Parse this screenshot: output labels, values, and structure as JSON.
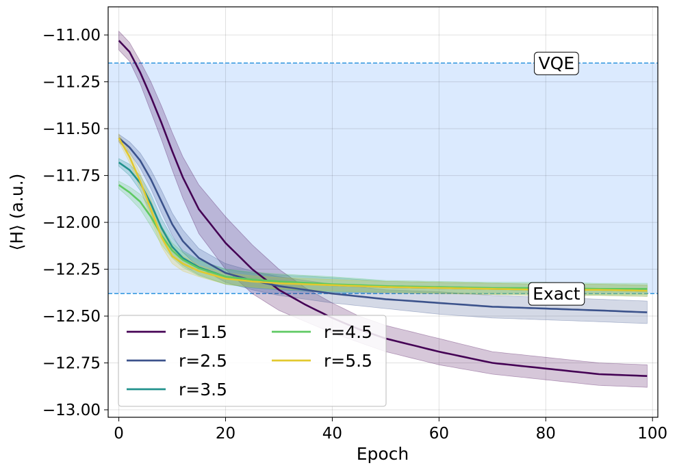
{
  "chart_data": {
    "type": "line",
    "title": "",
    "xlabel": "Epoch",
    "ylabel": "⟨H⟩ (a.u.)",
    "xlim": [
      -2,
      101
    ],
    "ylim": [
      -13.04,
      -10.85
    ],
    "xticks": [
      0,
      20,
      40,
      60,
      80,
      100
    ],
    "xtick_labels": [
      "0",
      "20",
      "40",
      "60",
      "80",
      "100"
    ],
    "yticks": [
      -11.0,
      -11.25,
      -11.5,
      -11.75,
      -12.0,
      -12.25,
      -12.5,
      -12.75,
      -13.0
    ],
    "ytick_labels": [
      "−11.00",
      "−11.25",
      "−11.50",
      "−11.75",
      "−12.00",
      "−12.25",
      "−12.50",
      "−12.75",
      "−13.00"
    ],
    "grid": true,
    "legend_position": "lower-left",
    "legend_columns": 2,
    "band": {
      "from": -12.38,
      "to": -11.15,
      "color": "#dbeafe"
    },
    "reference_lines": [
      {
        "name": "VQE",
        "label": "VQE",
        "y": -11.15,
        "label_x": 82,
        "color": "#3b9be0"
      },
      {
        "name": "Exact",
        "label": "Exact",
        "y": -12.38,
        "label_x": 82,
        "color": "#3b9be0"
      }
    ],
    "series": [
      {
        "name": "r=1.5",
        "label": "r=1.5",
        "color": "#440154",
        "x": [
          0,
          2,
          4,
          6,
          8,
          10,
          12,
          15,
          20,
          25,
          30,
          35,
          40,
          45,
          50,
          60,
          70,
          80,
          90,
          99
        ],
        "values": [
          -11.03,
          -11.09,
          -11.2,
          -11.33,
          -11.47,
          -11.62,
          -11.76,
          -11.93,
          -12.11,
          -12.25,
          -12.36,
          -12.44,
          -12.51,
          -12.57,
          -12.62,
          -12.69,
          -12.75,
          -12.78,
          -12.81,
          -12.82
        ],
        "spread": [
          0.05,
          0.05,
          0.06,
          0.08,
          0.09,
          0.1,
          0.11,
          0.13,
          0.14,
          0.13,
          0.11,
          0.09,
          0.08,
          0.07,
          0.07,
          0.07,
          0.06,
          0.06,
          0.06,
          0.06
        ]
      },
      {
        "name": "r=2.5",
        "label": "r=2.5",
        "color": "#3b528b",
        "x": [
          0,
          2,
          4,
          6,
          8,
          10,
          12,
          15,
          20,
          25,
          30,
          35,
          40,
          50,
          60,
          70,
          80,
          90,
          99
        ],
        "values": [
          -11.55,
          -11.6,
          -11.67,
          -11.77,
          -11.89,
          -12.01,
          -12.1,
          -12.19,
          -12.27,
          -12.31,
          -12.34,
          -12.36,
          -12.38,
          -12.41,
          -12.43,
          -12.45,
          -12.46,
          -12.47,
          -12.48
        ],
        "spread": [
          0.02,
          0.03,
          0.04,
          0.05,
          0.06,
          0.06,
          0.06,
          0.05,
          0.05,
          0.05,
          0.05,
          0.05,
          0.05,
          0.05,
          0.06,
          0.06,
          0.06,
          0.06,
          0.06
        ]
      },
      {
        "name": "r=3.5",
        "label": "r=3.5",
        "color": "#21918c",
        "x": [
          0,
          2,
          4,
          6,
          8,
          10,
          12,
          15,
          20,
          25,
          30,
          40,
          50,
          60,
          70,
          80,
          90,
          99
        ],
        "values": [
          -11.68,
          -11.72,
          -11.79,
          -11.9,
          -12.03,
          -12.13,
          -12.19,
          -12.24,
          -12.29,
          -12.31,
          -12.32,
          -12.335,
          -12.345,
          -12.35,
          -12.355,
          -12.36,
          -12.36,
          -12.365
        ],
        "spread": [
          0.02,
          0.03,
          0.04,
          0.05,
          0.05,
          0.05,
          0.04,
          0.04,
          0.04,
          0.04,
          0.04,
          0.04,
          0.03,
          0.03,
          0.03,
          0.03,
          0.03,
          0.03
        ]
      },
      {
        "name": "r=4.5",
        "label": "r=4.5",
        "color": "#5ec962",
        "x": [
          0,
          2,
          4,
          6,
          8,
          10,
          12,
          15,
          20,
          25,
          30,
          40,
          50,
          60,
          70,
          80,
          90,
          99
        ],
        "values": [
          -11.8,
          -11.84,
          -11.89,
          -11.97,
          -12.07,
          -12.15,
          -12.2,
          -12.245,
          -12.29,
          -12.305,
          -12.315,
          -12.33,
          -12.34,
          -12.345,
          -12.35,
          -12.35,
          -12.355,
          -12.355
        ],
        "spread": [
          0.02,
          0.03,
          0.04,
          0.05,
          0.05,
          0.04,
          0.04,
          0.04,
          0.04,
          0.04,
          0.04,
          0.04,
          0.03,
          0.03,
          0.03,
          0.03,
          0.03,
          0.03
        ]
      },
      {
        "name": "r=5.5",
        "label": "r=5.5",
        "color": "#e2c92f",
        "x": [
          0,
          2,
          4,
          6,
          8,
          10,
          12,
          15,
          20,
          25,
          30,
          40,
          50,
          60,
          70,
          80,
          90,
          99
        ],
        "values": [
          -11.55,
          -11.65,
          -11.78,
          -11.93,
          -12.08,
          -12.18,
          -12.22,
          -12.26,
          -12.3,
          -12.315,
          -12.325,
          -12.335,
          -12.345,
          -12.35,
          -12.355,
          -12.36,
          -12.36,
          -12.365
        ],
        "spread": [
          0.02,
          0.03,
          0.04,
          0.05,
          0.05,
          0.04,
          0.04,
          0.03,
          0.03,
          0.03,
          0.03,
          0.03,
          0.03,
          0.03,
          0.03,
          0.03,
          0.03,
          0.03
        ]
      }
    ]
  }
}
